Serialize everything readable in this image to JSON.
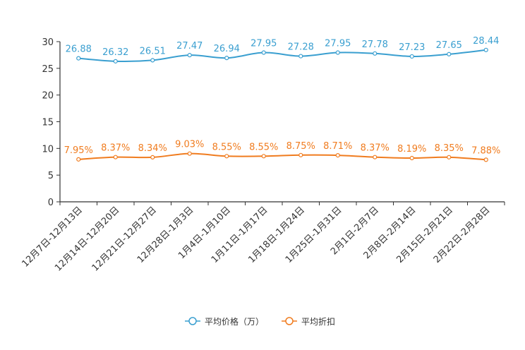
{
  "chart_data": {
    "type": "line",
    "title": "",
    "xlabel": "",
    "ylabel": "",
    "ylim": [
      0,
      30
    ],
    "yticks": [
      0,
      5,
      10,
      15,
      20,
      25,
      30
    ],
    "grid": false,
    "legend_position": "bottom-center",
    "categories": [
      "12月7日-12月13日",
      "12月14日-12月20日",
      "12月21日-12月27日",
      "12月28日-1月3日",
      "1月4日-1月10日",
      "1月11日-1月17日",
      "1月18日-1月24日",
      "1月25日-1月31日",
      "2月1日-2月7日",
      "2月8日-2月14日",
      "2月15日-2月21日",
      "2月22日-2月28日"
    ],
    "series": [
      {
        "name": "平均价格（万）",
        "color": "#3a9fd0",
        "values": [
          26.88,
          26.32,
          26.51,
          27.47,
          26.94,
          27.95,
          27.28,
          27.95,
          27.78,
          27.23,
          27.65,
          28.44
        ],
        "labels": [
          "26.88",
          "26.32",
          "26.51",
          "27.47",
          "26.94",
          "27.95",
          "27.28",
          "27.95",
          "27.78",
          "27.23",
          "27.65",
          "28.44"
        ]
      },
      {
        "name": "平均折扣",
        "color": "#f07c1f",
        "values": [
          7.95,
          8.37,
          8.34,
          9.03,
          8.55,
          8.55,
          8.75,
          8.71,
          8.37,
          8.19,
          8.35,
          7.88
        ],
        "labels": [
          "7.95%",
          "8.37%",
          "8.34%",
          "9.03%",
          "8.55%",
          "8.55%",
          "8.75%",
          "8.71%",
          "8.37%",
          "8.19%",
          "8.35%",
          "7.88%"
        ]
      }
    ]
  }
}
